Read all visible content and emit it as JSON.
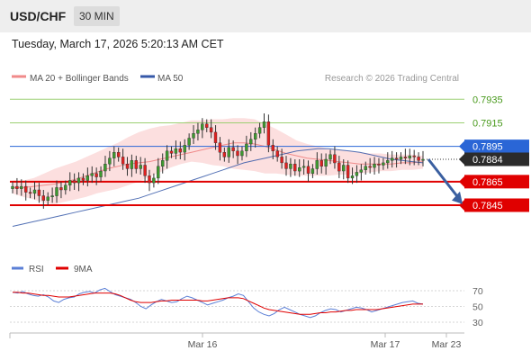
{
  "header": {
    "symbol": "USD/CHF",
    "timeframe": "30 MIN"
  },
  "timestamp": "Tuesday, March 17, 2026 5:20:13 AM CET",
  "legend": {
    "bollinger": "MA 20 + Bollinger Bands",
    "ma50": "MA 50",
    "rsi": "RSI",
    "rsi_ma": "9MA"
  },
  "credit": "Research © 2026 Trading Central",
  "colors": {
    "bullish": "#3d9a2f",
    "bearish": "#e02020",
    "ma20": "#f08a8a",
    "band_fill": "#fbd4d4",
    "ma50": "#3558a8",
    "target_line": "#9ccf72",
    "target_text": "#4a9a1e",
    "pivot": "#2a66d6",
    "support": "#e00000",
    "last_price_bg": "#2b2b2b",
    "rsi": "#5b7fd6",
    "rsi_ma": "#e00000",
    "arrow": "#3a5fa0"
  },
  "chart_data": [
    {
      "type": "candlestick",
      "title": "USD/CHF 30 MIN",
      "x_labels": [
        "Mar 16",
        "Mar 17",
        "Mar 23"
      ],
      "ylim": [
        0.7815,
        0.7945
      ],
      "levels": [
        {
          "label": "0.7935",
          "value": 0.7935,
          "kind": "target"
        },
        {
          "label": "0.7915",
          "value": 0.7915,
          "kind": "target"
        },
        {
          "label": "0.7895",
          "value": 0.7895,
          "kind": "pivot"
        },
        {
          "label": "0.7884",
          "value": 0.7884,
          "kind": "last"
        },
        {
          "label": "0.7865",
          "value": 0.7865,
          "kind": "support"
        },
        {
          "label": "0.7845",
          "value": 0.7845,
          "kind": "support"
        }
      ],
      "close": [
        0.7861,
        0.7859,
        0.7861,
        0.7856,
        0.7855,
        0.7858,
        0.7853,
        0.7849,
        0.7852,
        0.7853,
        0.786,
        0.7858,
        0.7862,
        0.7866,
        0.7864,
        0.7868,
        0.7866,
        0.787,
        0.7872,
        0.7869,
        0.7874,
        0.788,
        0.7885,
        0.789,
        0.7886,
        0.788,
        0.7876,
        0.7883,
        0.7876,
        0.7879,
        0.787,
        0.7864,
        0.7868,
        0.7878,
        0.7883,
        0.7891,
        0.7889,
        0.7893,
        0.789,
        0.7896,
        0.7902,
        0.7906,
        0.7909,
        0.7914,
        0.7911,
        0.7907,
        0.7898,
        0.789,
        0.7886,
        0.7894,
        0.7891,
        0.7887,
        0.7891,
        0.7897,
        0.7901,
        0.7906,
        0.7911,
        0.7916,
        0.7896,
        0.7891,
        0.7886,
        0.7881,
        0.7876,
        0.788,
        0.7874,
        0.7877,
        0.7878,
        0.7872,
        0.7876,
        0.7883,
        0.7878,
        0.7884,
        0.7888,
        0.7881,
        0.7874,
        0.7879,
        0.7868,
        0.787,
        0.7873,
        0.7875,
        0.7878,
        0.7877,
        0.788,
        0.7879,
        0.7881,
        0.7883,
        0.7885,
        0.7884,
        0.7886,
        0.7885,
        0.7887,
        0.7886,
        0.7883,
        0.7884
      ],
      "ma50": [
        0.7827,
        0.7829,
        0.7831,
        0.7833,
        0.7835,
        0.7837,
        0.7839,
        0.7841,
        0.7843,
        0.7845,
        0.7847,
        0.7849,
        0.7851,
        0.7854,
        0.7857,
        0.786,
        0.7863,
        0.7866,
        0.7869,
        0.7872,
        0.7875,
        0.7878,
        0.7881,
        0.7883,
        0.7885,
        0.7887,
        0.7889,
        0.7891,
        0.7892,
        0.7893,
        0.7893,
        0.7892,
        0.7891,
        0.789,
        0.7888,
        0.7886,
        0.7884,
        0.7883,
        0.7882,
        0.7881
      ],
      "ma20": [
        0.786,
        0.786,
        0.7861,
        0.7862,
        0.7863,
        0.7865,
        0.7867,
        0.787,
        0.7873,
        0.7876,
        0.7878,
        0.788,
        0.7881,
        0.7882,
        0.7884,
        0.7886,
        0.7888,
        0.789,
        0.7892,
        0.7894,
        0.7896,
        0.7898,
        0.7898,
        0.7897,
        0.7895,
        0.7892,
        0.7889,
        0.7887,
        0.7885,
        0.7884,
        0.7883,
        0.7882,
        0.7881,
        0.788,
        0.788,
        0.788,
        0.788,
        0.7881,
        0.7881,
        0.7882
      ],
      "bb_upper": [
        0.7866,
        0.7866,
        0.7868,
        0.7872,
        0.7876,
        0.7879,
        0.7882,
        0.7886,
        0.789,
        0.7894,
        0.7898,
        0.7903,
        0.7907,
        0.791,
        0.7912,
        0.7913,
        0.7915,
        0.7917,
        0.7917,
        0.7918,
        0.7918,
        0.7919,
        0.7919,
        0.7918,
        0.7914,
        0.791,
        0.7905,
        0.79,
        0.7897,
        0.7895,
        0.7893,
        0.7892,
        0.7891,
        0.789,
        0.7889,
        0.7889,
        0.7888,
        0.7888,
        0.7888,
        0.7887
      ],
      "bb_lower": [
        0.7855,
        0.7852,
        0.785,
        0.7847,
        0.7846,
        0.7848,
        0.785,
        0.7852,
        0.7855,
        0.7857,
        0.7859,
        0.7862,
        0.7865,
        0.7869,
        0.7873,
        0.7877,
        0.788,
        0.7882,
        0.7881,
        0.7879,
        0.7878,
        0.7876,
        0.7875,
        0.7874,
        0.7872,
        0.7872,
        0.7871,
        0.787,
        0.787,
        0.787,
        0.787,
        0.7871,
        0.7871,
        0.7872,
        0.7873,
        0.7874,
        0.7874,
        0.7875,
        0.7875,
        0.7876
      ]
    },
    {
      "type": "line",
      "title": "RSI",
      "ylim": [
        20,
        80
      ],
      "y_ticks": [
        70,
        50,
        30
      ],
      "series": [
        {
          "name": "RSI",
          "values": [
            68,
            67,
            69,
            66,
            64,
            63,
            65,
            62,
            57,
            55,
            59,
            61,
            62,
            66,
            68,
            69,
            67,
            71,
            73,
            69,
            65,
            63,
            61,
            59,
            55,
            50,
            47,
            52,
            56,
            59,
            57,
            55,
            56,
            60,
            63,
            61,
            58,
            55,
            52,
            54,
            56,
            58,
            61,
            63,
            66,
            64,
            56,
            48,
            43,
            40,
            38,
            41,
            46,
            49,
            46,
            43,
            40,
            38,
            36,
            38,
            42,
            45,
            47,
            46,
            43,
            45,
            47,
            49,
            48,
            46,
            43,
            45,
            47,
            49,
            51,
            53,
            55,
            56,
            57,
            54,
            53
          ]
        },
        {
          "name": "9MA",
          "values": [
            68,
            68,
            67,
            67,
            66,
            65,
            64,
            64,
            63,
            62,
            62,
            62,
            63,
            64,
            65,
            66,
            67,
            67,
            67,
            67,
            66,
            64,
            61,
            58,
            56,
            55,
            55,
            55,
            56,
            57,
            57,
            58,
            58,
            58,
            58,
            58,
            58,
            57,
            57,
            58,
            59,
            60,
            61,
            61,
            61,
            60,
            57,
            54,
            51,
            48,
            46,
            45,
            44,
            43,
            42,
            41,
            40,
            40,
            40,
            41,
            42,
            42,
            43,
            43,
            44,
            45,
            45,
            46,
            46,
            46,
            46,
            46,
            47,
            48,
            49,
            50,
            51,
            52,
            53,
            53,
            53
          ]
        }
      ]
    }
  ]
}
